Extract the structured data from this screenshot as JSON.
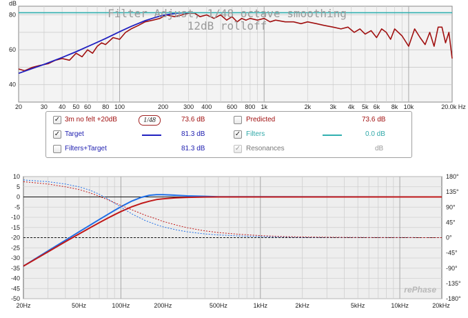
{
  "chart_data": [
    {
      "type": "line",
      "title": "Filter Adjust, 1/48 octave smoothing",
      "subtitle": "12dB rolloff",
      "ylabel": "dB",
      "xlabel": "Hz",
      "x_scale": "log",
      "xlim": [
        20,
        20000
      ],
      "ylim": [
        30,
        85
      ],
      "x_ticks": [
        20,
        30,
        40,
        50,
        60,
        80,
        100,
        200,
        300,
        400,
        600,
        800,
        1000,
        2000,
        3000,
        4000,
        5000,
        6000,
        8000,
        10000,
        20000
      ],
      "x_tick_labels": [
        "20",
        "30",
        "40",
        "50",
        "60",
        "80",
        "100",
        "200",
        "300",
        "400",
        "600",
        "800",
        "1k",
        "2k",
        "3k",
        "4k",
        "5k",
        "6k",
        "8k",
        "10k",
        "20.0k Hz"
      ],
      "y_ticks": [
        40,
        60,
        80
      ],
      "grid": true,
      "series": [
        {
          "name": "3m no felt +20dB",
          "color": "#a01010",
          "x": [
            20,
            22,
            25,
            28,
            32,
            36,
            40,
            45,
            50,
            55,
            60,
            65,
            70,
            75,
            80,
            90,
            100,
            110,
            120,
            135,
            150,
            170,
            190,
            210,
            240,
            270,
            300,
            330,
            360,
            400,
            450,
            500,
            550,
            600,
            650,
            700,
            750,
            800,
            900,
            1000,
            1100,
            1200,
            1400,
            1600,
            1800,
            2000,
            2300,
            2600,
            3000,
            3400,
            3800,
            4200,
            4600,
            5000,
            5500,
            6000,
            6500,
            7000,
            7500,
            8000,
            9000,
            10000,
            11000,
            12000,
            13000,
            14000,
            15000,
            16000,
            17000,
            18000,
            19000,
            20000
          ],
          "y": [
            49,
            48,
            50,
            51,
            52,
            54,
            55,
            54,
            58,
            56,
            60,
            58,
            62,
            64,
            63,
            67,
            66,
            70,
            72,
            74,
            76,
            77,
            78,
            80,
            79,
            80,
            81,
            81,
            79,
            80,
            78,
            80,
            77,
            79,
            76,
            78,
            77,
            78,
            77,
            78,
            76,
            77,
            76,
            76,
            75,
            76,
            75,
            74,
            73,
            72,
            73,
            70,
            72,
            69,
            71,
            67,
            72,
            70,
            66,
            72,
            68,
            62,
            72,
            67,
            63,
            70,
            62,
            73,
            73,
            64,
            70,
            55
          ]
        },
        {
          "name": "Target",
          "color": "#2020c0",
          "x": [
            20,
            25,
            30,
            40,
            50,
            60,
            70,
            80,
            100,
            120,
            150,
            180,
            200,
            250,
            300
          ],
          "y": [
            46.5,
            49.3,
            51.6,
            55.6,
            58.9,
            61.8,
            64.3,
            66.5,
            70.4,
            73.4,
            76.7,
            78.8,
            79.8,
            81.0,
            81.3
          ]
        },
        {
          "name": "Filters",
          "color": "#30b0b0",
          "x": [
            20,
            20000
          ],
          "y": [
            81.3,
            81.3
          ]
        }
      ]
    },
    {
      "type": "line",
      "title": "",
      "x_scale": "log",
      "xlim": [
        20,
        20000
      ],
      "ylim": [
        -50,
        10
      ],
      "y2lim": [
        -180,
        180
      ],
      "x_ticks": [
        20,
        50,
        100,
        200,
        500,
        1000,
        2000,
        5000,
        10000,
        20000
      ],
      "x_tick_labels": [
        "20Hz",
        "50Hz",
        "100Hz",
        "200Hz",
        "500Hz",
        "1kHz",
        "2kHz",
        "5kHz",
        "10kHz",
        "20kHz"
      ],
      "y_ticks": [
        10,
        5,
        0,
        -5,
        -10,
        -15,
        -20,
        -25,
        -30,
        -35,
        -40,
        -45,
        -50
      ],
      "y2_ticks": [
        180,
        135,
        90,
        45,
        0,
        -45,
        -90,
        -135,
        -180
      ],
      "y2_tick_labels": [
        "180°",
        "135°",
        "90°",
        "45°",
        "0°",
        "-45°",
        "-90°",
        "-135°",
        "-180°"
      ],
      "grid": true,
      "watermark": "rePhase",
      "series": [
        {
          "name": "",
          "axis": "left",
          "color": "#1e6ee6",
          "x": [
            20,
            30,
            40,
            50,
            60,
            70,
            80,
            90,
            100,
            120,
            140,
            160,
            180,
            200,
            250,
            300,
            400,
            500,
            20000
          ],
          "y": [
            -34,
            -26.5,
            -21.3,
            -17.2,
            -13.9,
            -11.1,
            -8.7,
            -6.6,
            -4.8,
            -2.0,
            -0.2,
            0.8,
            1.1,
            1.1,
            0.8,
            0.5,
            0.3,
            0.1,
            0
          ]
        },
        {
          "name": "",
          "axis": "left",
          "color": "#c01818",
          "x": [
            20,
            30,
            40,
            50,
            60,
            70,
            80,
            90,
            100,
            120,
            140,
            160,
            180,
            200,
            250,
            300,
            400,
            500,
            20000
          ],
          "y": [
            -34,
            -27.0,
            -22.0,
            -18.2,
            -15.2,
            -12.6,
            -10.5,
            -8.7,
            -7.2,
            -4.8,
            -3.2,
            -2.1,
            -1.3,
            -0.9,
            -0.4,
            -0.2,
            -0.05,
            0,
            0
          ]
        },
        {
          "name": "",
          "axis": "right",
          "dashed": true,
          "color": "#1e6ee6",
          "x": [
            20,
            30,
            40,
            50,
            60,
            70,
            80,
            100,
            120,
            150,
            180,
            200,
            250,
            300,
            400,
            500,
            700,
            1000,
            1500,
            2000,
            5000,
            20000
          ],
          "y": [
            170,
            165,
            158,
            150,
            140,
            128,
            115,
            90,
            70,
            50,
            38,
            32,
            23,
            17,
            11,
            8,
            5,
            3,
            2,
            1,
            0.5,
            0
          ]
        },
        {
          "name": "",
          "axis": "right",
          "dashed": true,
          "color": "#c01818",
          "x": [
            20,
            30,
            40,
            50,
            60,
            70,
            80,
            100,
            120,
            150,
            180,
            200,
            250,
            300,
            400,
            500,
            700,
            1000,
            1500,
            2000,
            5000,
            20000
          ],
          "y": [
            165,
            158,
            150,
            142,
            132,
            122,
            112,
            95,
            82,
            66,
            55,
            48,
            37,
            29,
            20,
            15,
            10,
            6,
            3,
            2,
            0.5,
            0
          ]
        }
      ]
    }
  ],
  "legend": {
    "rows": [
      {
        "checked": true,
        "label": "3m no felt +20dB",
        "value": "73.6 dB",
        "color": "#a01010",
        "smoothing": "1/48"
      },
      {
        "checked": true,
        "label": "Target",
        "value": "81.3 dB",
        "color": "#2020c0"
      },
      {
        "checked": false,
        "label": "Filters+Target",
        "value": "81.3 dB",
        "color": "#2020c0"
      }
    ],
    "right_rows": [
      {
        "checked": false,
        "label": "Predicted",
        "value": "73.6 dB",
        "color": "#a01010"
      },
      {
        "checked": true,
        "label": "Filters",
        "value": "0.0 dB",
        "color": "#30b0b0"
      },
      {
        "checked": true,
        "label": "Resonances",
        "value": "dB",
        "color": "#808080",
        "disabled": true
      }
    ]
  }
}
